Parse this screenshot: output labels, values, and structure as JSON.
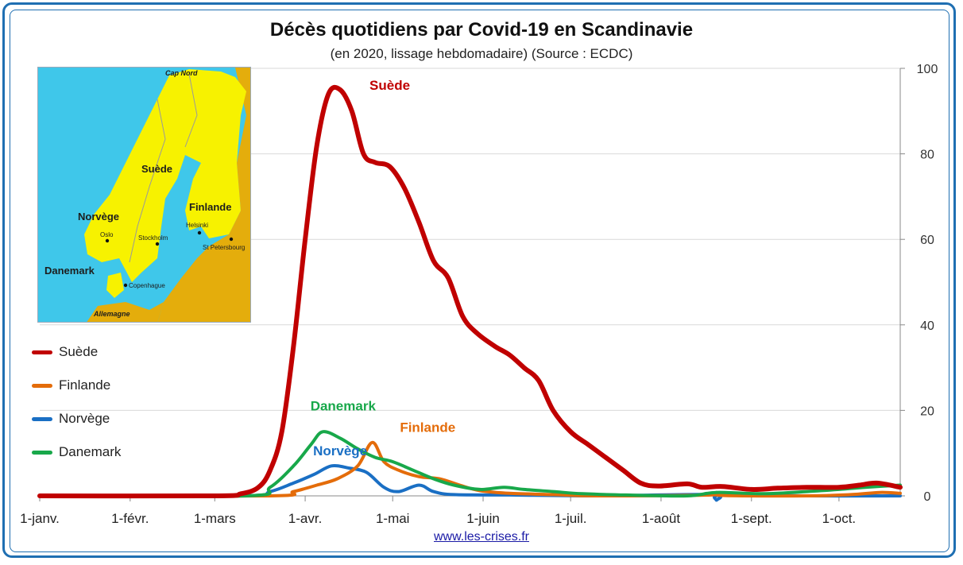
{
  "chart_data": {
    "type": "line",
    "title": "Décès quotidiens par Covid-19 en Scandinavie",
    "subtitle": "(en 2020, lissage hebdomadaire) (Source : ECDC)",
    "x_ticks": [
      "1-janv.",
      "1-févr.",
      "1-mars",
      "1-avr.",
      "1-mai",
      "1-juin",
      "1-juil.",
      "1-août",
      "1-sept.",
      "1-oct."
    ],
    "y_ticks": [
      "0",
      "20",
      "40",
      "60",
      "80",
      "100"
    ],
    "ylim": [
      0,
      100
    ],
    "xlim": [
      "2020-01-01",
      "2020-10-22"
    ],
    "y_axis_position": "right",
    "grid": "horizontal",
    "legend_position": "left",
    "series": [
      {
        "name": "Suède",
        "color": "#c00000",
        "points": [
          [
            "2020-01-01",
            0
          ],
          [
            "2020-03-01",
            0
          ],
          [
            "2020-03-10",
            0.5
          ],
          [
            "2020-03-16",
            2
          ],
          [
            "2020-03-20",
            6
          ],
          [
            "2020-03-24",
            15
          ],
          [
            "2020-03-28",
            35
          ],
          [
            "2020-04-01",
            60
          ],
          [
            "2020-04-05",
            82
          ],
          [
            "2020-04-09",
            94
          ],
          [
            "2020-04-13",
            95
          ],
          [
            "2020-04-17",
            90
          ],
          [
            "2020-04-21",
            80
          ],
          [
            "2020-04-25",
            78
          ],
          [
            "2020-04-30",
            77
          ],
          [
            "2020-05-05",
            72
          ],
          [
            "2020-05-10",
            64
          ],
          [
            "2020-05-15",
            55
          ],
          [
            "2020-05-20",
            51
          ],
          [
            "2020-05-25",
            42
          ],
          [
            "2020-05-30",
            38
          ],
          [
            "2020-06-05",
            35
          ],
          [
            "2020-06-10",
            33
          ],
          [
            "2020-06-15",
            30
          ],
          [
            "2020-06-20",
            27
          ],
          [
            "2020-06-25",
            20
          ],
          [
            "2020-07-01",
            15
          ],
          [
            "2020-07-07",
            12
          ],
          [
            "2020-07-13",
            9
          ],
          [
            "2020-07-19",
            6
          ],
          [
            "2020-07-25",
            3
          ],
          [
            "2020-07-31",
            2.3
          ],
          [
            "2020-08-10",
            2.8
          ],
          [
            "2020-08-15",
            2
          ],
          [
            "2020-08-22",
            2.2
          ],
          [
            "2020-09-01",
            1.5
          ],
          [
            "2020-09-10",
            1.8
          ],
          [
            "2020-09-20",
            2
          ],
          [
            "2020-10-01",
            2
          ],
          [
            "2020-10-08",
            2.5
          ],
          [
            "2020-10-14",
            3
          ],
          [
            "2020-10-22",
            2
          ]
        ]
      },
      {
        "name": "Finlande",
        "color": "#e46c0a",
        "points": [
          [
            "2020-01-01",
            0
          ],
          [
            "2020-03-20",
            0
          ],
          [
            "2020-03-28",
            1
          ],
          [
            "2020-04-05",
            2.5
          ],
          [
            "2020-04-12",
            4
          ],
          [
            "2020-04-19",
            7
          ],
          [
            "2020-04-24",
            12.5
          ],
          [
            "2020-04-28",
            8
          ],
          [
            "2020-05-03",
            6
          ],
          [
            "2020-05-10",
            4.5
          ],
          [
            "2020-05-17",
            4
          ],
          [
            "2020-05-24",
            2.5
          ],
          [
            "2020-05-31",
            1.2
          ],
          [
            "2020-06-10",
            0.6
          ],
          [
            "2020-06-25",
            0.3
          ],
          [
            "2020-07-10",
            0
          ],
          [
            "2020-08-18",
            0.2
          ],
          [
            "2020-08-20",
            0.8
          ],
          [
            "2020-08-22",
            0.1
          ],
          [
            "2020-09-20",
            0
          ],
          [
            "2020-10-05",
            0.3
          ],
          [
            "2020-10-15",
            0.8
          ],
          [
            "2020-10-22",
            0.6
          ]
        ]
      },
      {
        "name": "Norvège",
        "color": "#1a6fc4",
        "points": [
          [
            "2020-01-01",
            0
          ],
          [
            "2020-03-10",
            0
          ],
          [
            "2020-03-20",
            1
          ],
          [
            "2020-03-28",
            3
          ],
          [
            "2020-04-04",
            5
          ],
          [
            "2020-04-10",
            7
          ],
          [
            "2020-04-16",
            6.5
          ],
          [
            "2020-04-22",
            5.5
          ],
          [
            "2020-04-28",
            2
          ],
          [
            "2020-05-03",
            1
          ],
          [
            "2020-05-10",
            2.5
          ],
          [
            "2020-05-15",
            1
          ],
          [
            "2020-05-22",
            0.3
          ],
          [
            "2020-06-10",
            0.2
          ],
          [
            "2020-07-10",
            0
          ],
          [
            "2020-08-18",
            0.3
          ],
          [
            "2020-08-20",
            -1
          ],
          [
            "2020-08-22",
            0.2
          ],
          [
            "2020-09-20",
            0
          ],
          [
            "2020-10-22",
            0
          ]
        ]
      },
      {
        "name": "Danemark",
        "color": "#18a84a",
        "points": [
          [
            "2020-01-01",
            0
          ],
          [
            "2020-03-12",
            0
          ],
          [
            "2020-03-20",
            2
          ],
          [
            "2020-03-28",
            7
          ],
          [
            "2020-04-03",
            12
          ],
          [
            "2020-04-07",
            15
          ],
          [
            "2020-04-13",
            13.5
          ],
          [
            "2020-04-19",
            11
          ],
          [
            "2020-04-25",
            9
          ],
          [
            "2020-05-01",
            8
          ],
          [
            "2020-05-08",
            6
          ],
          [
            "2020-05-15",
            4
          ],
          [
            "2020-05-22",
            2.5
          ],
          [
            "2020-05-31",
            1.5
          ],
          [
            "2020-06-08",
            2
          ],
          [
            "2020-06-15",
            1.5
          ],
          [
            "2020-06-25",
            1
          ],
          [
            "2020-07-05",
            0.5
          ],
          [
            "2020-07-20",
            0.2
          ],
          [
            "2020-08-10",
            0
          ],
          [
            "2020-08-20",
            0.8
          ],
          [
            "2020-09-05",
            0.5
          ],
          [
            "2020-09-20",
            1
          ],
          [
            "2020-10-01",
            1.5
          ],
          [
            "2020-10-10",
            2
          ],
          [
            "2020-10-22",
            2.5
          ]
        ]
      }
    ],
    "annotations": [
      {
        "text": "Suède",
        "color": "#c00000",
        "date": "2020-04-30",
        "y": 95
      },
      {
        "text": "Danemark",
        "color": "#18a84a",
        "date": "2020-04-14",
        "y": 20
      },
      {
        "text": "Finlande",
        "color": "#e46c0a",
        "date": "2020-05-13",
        "y": 15
      },
      {
        "text": "Norvège",
        "color": "#1a6fc4",
        "date": "2020-04-13",
        "y": 9.5
      }
    ]
  },
  "legend": {
    "items": [
      {
        "label": "Suède",
        "color": "#c00000"
      },
      {
        "label": "Finlande",
        "color": "#e46c0a"
      },
      {
        "label": "Norvège",
        "color": "#1a6fc4"
      },
      {
        "label": "Danemark",
        "color": "#18a84a"
      }
    ]
  },
  "map": {
    "labels": {
      "cap_nord": "Cap Nord",
      "suede": "Suède",
      "finlande": "Finlande",
      "norvege": "Norvège",
      "danemark": "Danemark",
      "oslo": "Oslo",
      "stockholm": "Stockholm",
      "helsinki": "Helsinki",
      "st_petersbourg": "St Petersbourg",
      "copenhague": "Copenhague",
      "allemagne": "Allemagne"
    },
    "colors": {
      "sea": "#3fc7ea",
      "scandinavia": "#f7f200",
      "other_land": "#e4ad0c"
    }
  },
  "footer": {
    "source_link": "www.les-crises.fr"
  }
}
